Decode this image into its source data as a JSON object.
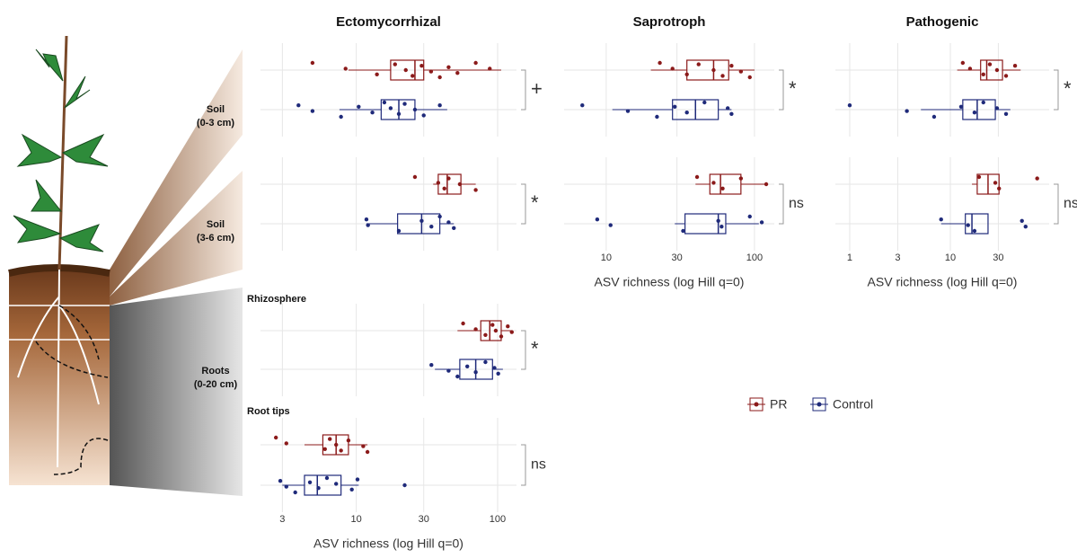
{
  "illustration_labels": [
    [
      "Soil",
      "(0-3 cm)"
    ],
    [
      "Soil",
      "(3-6 cm)"
    ],
    [
      "Roots",
      "(0-20 cm)"
    ]
  ],
  "panel_labels": [
    "Rhizosphere",
    "Root tips"
  ],
  "chart_data": [
    {
      "type": "boxplot",
      "title": "Ectomycorrhizal",
      "x_label": "ASV richness (log Hill q=0)",
      "log_scale": true,
      "grid": true,
      "xlim": [
        2.1,
        136
      ],
      "xticks": [
        3,
        10,
        30,
        100
      ],
      "panels": [
        {
          "significance": "+",
          "series": [
            {
              "name": "PR",
              "color": "#8b1a1a",
              "box": [
                8.8,
                17.5,
                26,
                30,
                106
              ],
              "points": [
                4.9,
                8.4,
                14,
                18.8,
                22.4,
                25,
                29,
                33.8,
                39,
                45,
                52,
                70,
                88
              ]
            },
            {
              "name": "Control",
              "color": "#1f2a7a",
              "box": [
                7.6,
                15,
                20,
                26,
                44
              ],
              "points": [
                3.9,
                4.9,
                7.8,
                10.4,
                13,
                15.8,
                17.5,
                20,
                22,
                26,
                30,
                39
              ]
            }
          ]
        },
        {
          "significance": "*",
          "series": [
            {
              "name": "PR",
              "color": "#8b1a1a",
              "box": [
                35,
                38,
                44,
                55,
                70
              ],
              "points": [
                26,
                38,
                42,
                45,
                54,
                70
              ]
            },
            {
              "name": "Control",
              "color": "#1f2a7a",
              "box": [
                11.8,
                19.6,
                29,
                39,
                49
              ],
              "points": [
                11.8,
                12.1,
                20,
                29,
                34,
                39,
                45,
                49
              ]
            }
          ]
        },
        {
          "significance": "*",
          "series": [
            {
              "name": "PR",
              "color": "#8b1a1a",
              "box": [
                52,
                76,
                88,
                106,
                126
              ],
              "points": [
                57,
                70,
                82,
                92,
                97,
                106,
                118,
                126
              ]
            },
            {
              "name": "Control",
              "color": "#1f2a7a",
              "box": [
                36,
                54,
                70,
                92,
                109
              ],
              "points": [
                34,
                45,
                52,
                61,
                70,
                82,
                95,
                101
              ]
            }
          ]
        },
        {
          "significance": "ns",
          "series": [
            {
              "name": "PR",
              "color": "#8b1a1a",
              "box": [
                4.3,
                5.8,
                7.2,
                8.8,
                12
              ],
              "points": [
                2.7,
                3.2,
                6,
                6.5,
                7.2,
                7.8,
                8.8,
                11.2,
                12
              ]
            },
            {
              "name": "Control",
              "color": "#1f2a7a",
              "box": [
                3,
                4.3,
                5.3,
                7.8,
                10.4
              ],
              "points": [
                2.9,
                3.2,
                3.7,
                4.7,
                5.4,
                6.2,
                7.2,
                9.3,
                10.2,
                22
              ]
            }
          ]
        }
      ]
    },
    {
      "type": "boxplot",
      "title": "Saprotroph",
      "x_label": "ASV richness (log Hill q=0)",
      "log_scale": true,
      "grid": true,
      "xlim": [
        5.2,
        136
      ],
      "xticks": [
        10,
        30,
        100
      ],
      "panels": [
        {
          "significance": "*",
          "series": [
            {
              "name": "PR",
              "color": "#8b1a1a",
              "box": [
                20,
                35,
                53,
                67,
                100
              ],
              "points": [
                23,
                28,
                35,
                42,
                53,
                61,
                70,
                81,
                93
              ]
            },
            {
              "name": "Control",
              "color": "#1f2a7a",
              "box": [
                11,
                28,
                40,
                57,
                70
              ],
              "points": [
                6.9,
                14,
                22,
                29,
                35,
                46,
                66,
                70
              ]
            }
          ]
        },
        {
          "significance": "ns",
          "series": [
            {
              "name": "PR",
              "color": "#8b1a1a",
              "box": [
                40,
                50,
                59,
                81,
                123
              ],
              "points": [
                41,
                53,
                61,
                81,
                120
              ]
            },
            {
              "name": "Control",
              "color": "#1f2a7a",
              "box": [
                29,
                34,
                57,
                64,
                107
              ],
              "points": [
                8.7,
                10.7,
                33,
                57,
                60,
                93,
                112
              ]
            }
          ]
        }
      ]
    },
    {
      "type": "boxplot",
      "title": "Pathogenic",
      "x_label": "ASV richness (log Hill q=0)",
      "log_scale": true,
      "grid": true,
      "xlim": [
        0.72,
        96
      ],
      "xticks": [
        1,
        3,
        10,
        30
      ],
      "panels": [
        {
          "significance": "*",
          "series": [
            {
              "name": "PR",
              "color": "#8b1a1a",
              "box": [
                11.7,
                20,
                23,
                33,
                50
              ],
              "points": [
                13.3,
                15.7,
                21.3,
                24.7,
                29.1,
                35.8,
                44
              ]
            },
            {
              "name": "Control",
              "color": "#1f2a7a",
              "box": [
                5.1,
                13.3,
                18.5,
                28,
                39.5
              ],
              "points": [
                1.0,
                3.7,
                6.9,
                12.8,
                17.4,
                21.3,
                29.1,
                35.8
              ]
            }
          ]
        },
        {
          "significance": "ns",
          "series": [
            {
              "name": "PR",
              "color": "#8b1a1a",
              "box": [
                16.4,
                18.5,
                23.7,
                30.5,
                30.5
              ],
              "points": [
                19.3,
                28,
                30.5,
                73
              ]
            },
            {
              "name": "Control",
              "color": "#1f2a7a",
              "box": [
                8.1,
                14.1,
                16.4,
                23.7,
                23.7
              ],
              "points": [
                8.1,
                15,
                17.4,
                51.5,
                56
              ]
            }
          ]
        }
      ]
    }
  ]
}
